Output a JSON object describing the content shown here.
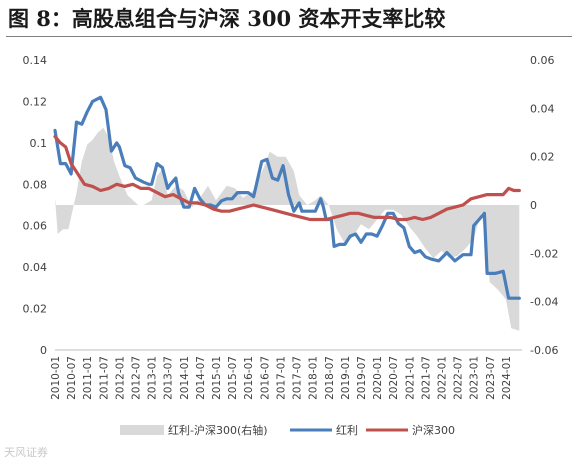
{
  "title": "图 8：高股息组合与沪深 300 资本开支率比较",
  "watermark": "天风证券",
  "chart_data": {
    "type": "line",
    "x_tick_labels": [
      "2010-01",
      "2010-07",
      "2011-01",
      "2011-07",
      "2012-01",
      "2012-07",
      "2013-01",
      "2013-07",
      "2014-01",
      "2014-07",
      "2015-01",
      "2015-07",
      "2016-01",
      "2016-07",
      "2017-01",
      "2017-07",
      "2018-01",
      "2018-07",
      "2019-01",
      "2019-07",
      "2020-01",
      "2020-07",
      "2021-01",
      "2021-07",
      "2022-01",
      "2022-07",
      "2023-01",
      "2023-07",
      "2024-01"
    ],
    "y_left": {
      "ylim": [
        0,
        0.14
      ],
      "ticks": [
        "0",
        "0.02",
        "0.04",
        "0.06",
        "0.08",
        "0.1",
        "0.12",
        "0.14"
      ]
    },
    "y_right": {
      "ylim": [
        -0.06,
        0.06
      ],
      "ticks": [
        "-0.06",
        "-0.04",
        "-0.02",
        "0",
        "0.02",
        "0.04",
        "0.06"
      ]
    },
    "grid": false,
    "legend_position": "bottom",
    "series": [
      {
        "name": "红利-沪深300(右轴)",
        "type": "area",
        "axis": "right",
        "color": "#d9d9d9",
        "points": [
          [
            "2010-01",
            0.003
          ],
          [
            "2010-02",
            -0.012
          ],
          [
            "2010-04",
            -0.01
          ],
          [
            "2010-06",
            -0.01
          ],
          [
            "2010-09",
            0.005
          ],
          [
            "2010-11",
            0.018
          ],
          [
            "2011-01",
            0.025
          ],
          [
            "2011-03",
            0.027
          ],
          [
            "2011-05",
            0.03
          ],
          [
            "2011-07",
            0.032
          ],
          [
            "2011-09",
            0.028
          ],
          [
            "2011-11",
            0.018
          ],
          [
            "2012-01",
            0.012
          ],
          [
            "2012-04",
            0.004
          ],
          [
            "2012-08",
            0.0
          ],
          [
            "2012-10",
            0.0
          ],
          [
            "2013-01",
            0.002
          ],
          [
            "2013-03",
            0.012
          ],
          [
            "2013-05",
            0.015
          ],
          [
            "2013-07",
            0.004
          ],
          [
            "2013-10",
            0.008
          ],
          [
            "2014-01",
            0.006
          ],
          [
            "2014-04",
            -0.001
          ],
          [
            "2014-07",
            0.003
          ],
          [
            "2014-10",
            0.008
          ],
          [
            "2015-01",
            0.002
          ],
          [
            "2015-05",
            0.008
          ],
          [
            "2015-08",
            0.007
          ],
          [
            "2015-11",
            0.003
          ],
          [
            "2016-03",
            0.006
          ],
          [
            "2016-07",
            0.016
          ],
          [
            "2016-09",
            0.022
          ],
          [
            "2016-12",
            0.02
          ],
          [
            "2017-03",
            0.02
          ],
          [
            "2017-06",
            0.014
          ],
          [
            "2017-08",
            0.004
          ],
          [
            "2017-11",
            0.0
          ],
          [
            "2018-02",
            0.002
          ],
          [
            "2018-04",
            0.004
          ],
          [
            "2018-07",
            0.0
          ],
          [
            "2018-10",
            -0.01
          ],
          [
            "2019-01",
            -0.016
          ],
          [
            "2019-04",
            -0.013
          ],
          [
            "2019-07",
            -0.008
          ],
          [
            "2019-10",
            -0.01
          ],
          [
            "2020-01",
            -0.006
          ],
          [
            "2020-04",
            -0.002
          ],
          [
            "2020-07",
            -0.002
          ],
          [
            "2020-10",
            -0.004
          ],
          [
            "2021-01",
            -0.009
          ],
          [
            "2021-04",
            -0.013
          ],
          [
            "2021-07",
            -0.018
          ],
          [
            "2021-10",
            -0.022
          ],
          [
            "2022-01",
            -0.019
          ],
          [
            "2022-04",
            -0.022
          ],
          [
            "2022-07",
            -0.021
          ],
          [
            "2022-10",
            -0.018
          ],
          [
            "2023-01",
            -0.014
          ],
          [
            "2023-03",
            -0.006
          ],
          [
            "2023-04",
            -0.003
          ],
          [
            "2023-07",
            -0.032
          ],
          [
            "2023-10",
            -0.035
          ],
          [
            "2024-01",
            -0.039
          ],
          [
            "2024-03",
            -0.051
          ],
          [
            "2024-06",
            -0.052
          ]
        ]
      },
      {
        "name": "红利",
        "type": "line",
        "axis": "left",
        "color": "#4a7ebb",
        "points": [
          [
            "2010-01",
            0.106
          ],
          [
            "2010-03",
            0.09
          ],
          [
            "2010-05",
            0.09
          ],
          [
            "2010-07",
            0.085
          ],
          [
            "2010-09",
            0.11
          ],
          [
            "2010-11",
            0.109
          ],
          [
            "2011-01",
            0.115
          ],
          [
            "2011-03",
            0.12
          ],
          [
            "2011-06",
            0.122
          ],
          [
            "2011-08",
            0.116
          ],
          [
            "2011-10",
            0.096
          ],
          [
            "2011-12",
            0.1
          ],
          [
            "2012-01",
            0.098
          ],
          [
            "2012-03",
            0.089
          ],
          [
            "2012-05",
            0.088
          ],
          [
            "2012-07",
            0.083
          ],
          [
            "2012-10",
            0.081
          ],
          [
            "2012-12",
            0.08
          ],
          [
            "2013-01",
            0.08
          ],
          [
            "2013-03",
            0.09
          ],
          [
            "2013-05",
            0.088
          ],
          [
            "2013-07",
            0.078
          ],
          [
            "2013-08",
            0.08
          ],
          [
            "2013-10",
            0.083
          ],
          [
            "2013-11",
            0.076
          ],
          [
            "2014-01",
            0.069
          ],
          [
            "2014-03",
            0.069
          ],
          [
            "2014-05",
            0.078
          ],
          [
            "2014-07",
            0.073
          ],
          [
            "2014-09",
            0.07
          ],
          [
            "2014-11",
            0.07
          ],
          [
            "2015-01",
            0.069
          ],
          [
            "2015-03",
            0.072
          ],
          [
            "2015-05",
            0.073
          ],
          [
            "2015-07",
            0.073
          ],
          [
            "2015-09",
            0.076
          ],
          [
            "2015-11",
            0.076
          ],
          [
            "2016-01",
            0.076
          ],
          [
            "2016-03",
            0.074
          ],
          [
            "2016-06",
            0.091
          ],
          [
            "2016-08",
            0.092
          ],
          [
            "2016-10",
            0.083
          ],
          [
            "2016-12",
            0.082
          ],
          [
            "2017-02",
            0.089
          ],
          [
            "2017-04",
            0.075
          ],
          [
            "2017-06",
            0.067
          ],
          [
            "2017-08",
            0.071
          ],
          [
            "2017-09",
            0.067
          ],
          [
            "2017-11",
            0.067
          ],
          [
            "2018-02",
            0.067
          ],
          [
            "2018-04",
            0.073
          ],
          [
            "2018-05",
            0.069
          ],
          [
            "2018-06",
            0.063
          ],
          [
            "2018-08",
            0.063
          ],
          [
            "2018-09",
            0.05
          ],
          [
            "2018-11",
            0.051
          ],
          [
            "2019-01",
            0.051
          ],
          [
            "2019-03",
            0.055
          ],
          [
            "2019-05",
            0.056
          ],
          [
            "2019-07",
            0.052
          ],
          [
            "2019-09",
            0.056
          ],
          [
            "2019-11",
            0.056
          ],
          [
            "2020-01",
            0.055
          ],
          [
            "2020-03",
            0.06
          ],
          [
            "2020-05",
            0.066
          ],
          [
            "2020-07",
            0.066
          ],
          [
            "2020-09",
            0.061
          ],
          [
            "2020-11",
            0.059
          ],
          [
            "2021-01",
            0.05
          ],
          [
            "2021-03",
            0.047
          ],
          [
            "2021-05",
            0.048
          ],
          [
            "2021-07",
            0.045
          ],
          [
            "2021-09",
            0.044
          ],
          [
            "2021-12",
            0.043
          ],
          [
            "2022-03",
            0.047
          ],
          [
            "2022-06",
            0.043
          ],
          [
            "2022-09",
            0.046
          ],
          [
            "2022-12",
            0.046
          ],
          [
            "2023-01",
            0.06
          ],
          [
            "2023-03",
            0.063
          ],
          [
            "2023-05",
            0.066
          ],
          [
            "2023-06",
            0.037
          ],
          [
            "2023-09",
            0.037
          ],
          [
            "2023-12",
            0.038
          ],
          [
            "2024-02",
            0.025
          ],
          [
            "2024-06",
            0.025
          ]
        ]
      },
      {
        "name": "沪深300",
        "type": "line",
        "axis": "left",
        "color": "#c0504d",
        "points": [
          [
            "2010-01",
            0.103
          ],
          [
            "2010-03",
            0.1
          ],
          [
            "2010-05",
            0.098
          ],
          [
            "2010-07",
            0.09
          ],
          [
            "2010-09",
            0.086
          ],
          [
            "2010-12",
            0.08
          ],
          [
            "2011-03",
            0.079
          ],
          [
            "2011-06",
            0.077
          ],
          [
            "2011-09",
            0.078
          ],
          [
            "2011-12",
            0.08
          ],
          [
            "2012-03",
            0.079
          ],
          [
            "2012-06",
            0.08
          ],
          [
            "2012-09",
            0.078
          ],
          [
            "2012-12",
            0.078
          ],
          [
            "2013-03",
            0.076
          ],
          [
            "2013-06",
            0.074
          ],
          [
            "2013-09",
            0.075
          ],
          [
            "2013-12",
            0.073
          ],
          [
            "2014-03",
            0.071
          ],
          [
            "2014-06",
            0.071
          ],
          [
            "2014-09",
            0.07
          ],
          [
            "2014-12",
            0.068
          ],
          [
            "2015-03",
            0.067
          ],
          [
            "2015-06",
            0.067
          ],
          [
            "2015-09",
            0.068
          ],
          [
            "2015-12",
            0.069
          ],
          [
            "2016-03",
            0.07
          ],
          [
            "2016-06",
            0.069
          ],
          [
            "2016-09",
            0.068
          ],
          [
            "2016-12",
            0.067
          ],
          [
            "2017-03",
            0.066
          ],
          [
            "2017-06",
            0.065
          ],
          [
            "2017-09",
            0.064
          ],
          [
            "2017-12",
            0.063
          ],
          [
            "2018-03",
            0.063
          ],
          [
            "2018-06",
            0.063
          ],
          [
            "2018-09",
            0.064
          ],
          [
            "2018-12",
            0.065
          ],
          [
            "2019-03",
            0.066
          ],
          [
            "2019-06",
            0.066
          ],
          [
            "2019-09",
            0.065
          ],
          [
            "2019-12",
            0.064
          ],
          [
            "2020-03",
            0.064
          ],
          [
            "2020-06",
            0.064
          ],
          [
            "2020-09",
            0.063
          ],
          [
            "2020-12",
            0.063
          ],
          [
            "2021-03",
            0.064
          ],
          [
            "2021-06",
            0.063
          ],
          [
            "2021-09",
            0.064
          ],
          [
            "2021-12",
            0.066
          ],
          [
            "2022-03",
            0.068
          ],
          [
            "2022-06",
            0.069
          ],
          [
            "2022-09",
            0.07
          ],
          [
            "2022-12",
            0.073
          ],
          [
            "2023-03",
            0.074
          ],
          [
            "2023-06",
            0.075
          ],
          [
            "2023-09",
            0.075
          ],
          [
            "2023-12",
            0.075
          ],
          [
            "2024-02",
            0.078
          ],
          [
            "2024-04",
            0.077
          ],
          [
            "2024-06",
            0.077
          ]
        ]
      }
    ]
  }
}
